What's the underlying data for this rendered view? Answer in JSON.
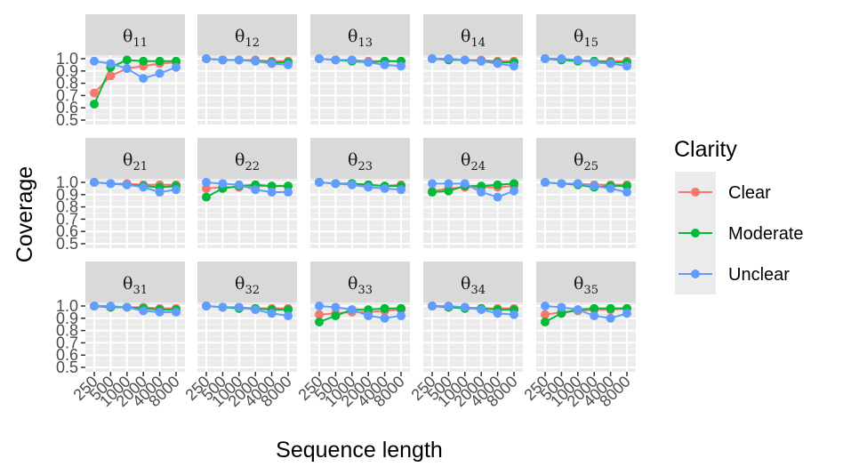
{
  "chart_data": {
    "type": "line",
    "facet_layout": "3x5 grid",
    "xlabel": "Sequence length",
    "ylabel": "Coverage",
    "x_ticks": [
      "250",
      "500",
      "1000",
      "2000",
      "4000",
      "8000"
    ],
    "y_ticks": [
      "0.5",
      "0.6",
      "0.7",
      "0.8",
      "0.9",
      "1.0"
    ],
    "ylim": [
      0.5,
      1.0
    ],
    "legend": {
      "title": "Clarity",
      "placement": "right",
      "entries": [
        {
          "name": "Clear",
          "color": "#F8766D"
        },
        {
          "name": "Moderate",
          "color": "#00BA38"
        },
        {
          "name": "Unclear",
          "color": "#619CFF"
        }
      ]
    },
    "facets": [
      {
        "base": "θ",
        "sub": "11",
        "series": {
          "Clear": [
            0.72,
            0.86,
            0.92,
            0.94,
            0.96,
            0.97
          ],
          "Moderate": [
            0.63,
            0.93,
            0.99,
            0.98,
            0.98,
            0.98
          ],
          "Unclear": [
            0.98,
            0.96,
            0.92,
            0.84,
            0.88,
            0.93
          ]
        }
      },
      {
        "base": "θ",
        "sub": "12",
        "series": {
          "Clear": [
            1.0,
            0.99,
            0.99,
            0.99,
            0.98,
            0.98
          ],
          "Moderate": [
            1.0,
            0.99,
            0.99,
            0.98,
            0.97,
            0.97
          ],
          "Unclear": [
            1.0,
            0.99,
            0.99,
            0.98,
            0.96,
            0.95
          ]
        }
      },
      {
        "base": "θ",
        "sub": "13",
        "series": {
          "Clear": [
            1.0,
            0.99,
            0.99,
            0.98,
            0.98,
            0.98
          ],
          "Moderate": [
            1.0,
            0.99,
            0.98,
            0.97,
            0.98,
            0.98
          ],
          "Unclear": [
            1.0,
            0.99,
            0.99,
            0.97,
            0.95,
            0.94
          ]
        }
      },
      {
        "base": "θ",
        "sub": "14",
        "series": {
          "Clear": [
            1.0,
            1.0,
            0.99,
            0.99,
            0.98,
            0.98
          ],
          "Moderate": [
            1.0,
            0.99,
            0.99,
            0.98,
            0.97,
            0.97
          ],
          "Unclear": [
            1.0,
            1.0,
            0.99,
            0.98,
            0.96,
            0.94
          ]
        }
      },
      {
        "base": "θ",
        "sub": "15",
        "series": {
          "Clear": [
            1.0,
            0.99,
            0.99,
            0.98,
            0.98,
            0.98
          ],
          "Moderate": [
            1.0,
            0.99,
            0.98,
            0.98,
            0.97,
            0.97
          ],
          "Unclear": [
            1.0,
            1.0,
            0.99,
            0.97,
            0.96,
            0.94
          ]
        }
      },
      {
        "base": "θ",
        "sub": "21",
        "series": {
          "Clear": [
            1.0,
            0.99,
            0.99,
            0.98,
            0.98,
            0.98
          ],
          "Moderate": [
            1.0,
            0.99,
            0.98,
            0.97,
            0.96,
            0.97
          ],
          "Unclear": [
            1.0,
            0.99,
            0.98,
            0.96,
            0.92,
            0.94
          ]
        }
      },
      {
        "base": "θ",
        "sub": "22",
        "series": {
          "Clear": [
            0.95,
            0.96,
            0.96,
            0.97,
            0.97,
            0.97
          ],
          "Moderate": [
            0.88,
            0.95,
            0.97,
            0.98,
            0.97,
            0.97
          ],
          "Unclear": [
            1.0,
            0.99,
            0.98,
            0.94,
            0.92,
            0.92
          ]
        }
      },
      {
        "base": "θ",
        "sub": "23",
        "series": {
          "Clear": [
            1.0,
            0.99,
            0.99,
            0.98,
            0.97,
            0.98
          ],
          "Moderate": [
            1.0,
            0.99,
            0.99,
            0.98,
            0.97,
            0.97
          ],
          "Unclear": [
            1.0,
            0.99,
            0.98,
            0.96,
            0.95,
            0.94
          ]
        }
      },
      {
        "base": "θ",
        "sub": "24",
        "series": {
          "Clear": [
            0.93,
            0.95,
            0.96,
            0.96,
            0.96,
            0.97
          ],
          "Moderate": [
            0.92,
            0.93,
            0.97,
            0.97,
            0.98,
            0.99
          ],
          "Unclear": [
            0.99,
            0.99,
            0.99,
            0.92,
            0.88,
            0.93
          ]
        }
      },
      {
        "base": "θ",
        "sub": "25",
        "series": {
          "Clear": [
            1.0,
            0.99,
            0.99,
            0.98,
            0.98,
            0.98
          ],
          "Moderate": [
            1.0,
            0.99,
            0.98,
            0.96,
            0.97,
            0.97
          ],
          "Unclear": [
            1.0,
            0.99,
            0.99,
            0.97,
            0.95,
            0.92
          ]
        }
      },
      {
        "base": "θ",
        "sub": "31",
        "series": {
          "Clear": [
            1.0,
            0.99,
            0.99,
            0.99,
            0.98,
            0.98
          ],
          "Moderate": [
            1.0,
            0.99,
            0.99,
            0.98,
            0.97,
            0.97
          ],
          "Unclear": [
            1.0,
            1.0,
            0.99,
            0.96,
            0.95,
            0.95
          ]
        }
      },
      {
        "base": "θ",
        "sub": "32",
        "series": {
          "Clear": [
            1.0,
            0.99,
            0.99,
            0.98,
            0.98,
            0.98
          ],
          "Moderate": [
            1.0,
            0.99,
            0.98,
            0.98,
            0.97,
            0.97
          ],
          "Unclear": [
            1.0,
            0.99,
            0.99,
            0.97,
            0.94,
            0.92
          ]
        }
      },
      {
        "base": "θ",
        "sub": "33",
        "series": {
          "Clear": [
            0.93,
            0.94,
            0.95,
            0.95,
            0.96,
            0.97
          ],
          "Moderate": [
            0.87,
            0.92,
            0.97,
            0.97,
            0.98,
            0.98
          ],
          "Unclear": [
            1.0,
            0.99,
            0.97,
            0.92,
            0.9,
            0.92
          ]
        }
      },
      {
        "base": "θ",
        "sub": "34",
        "series": {
          "Clear": [
            1.0,
            0.99,
            0.99,
            0.98,
            0.98,
            0.98
          ],
          "Moderate": [
            1.0,
            0.99,
            0.98,
            0.98,
            0.97,
            0.97
          ],
          "Unclear": [
            1.0,
            1.0,
            0.99,
            0.97,
            0.94,
            0.93
          ]
        }
      },
      {
        "base": "θ",
        "sub": "35",
        "series": {
          "Clear": [
            0.93,
            0.95,
            0.96,
            0.97,
            0.97,
            0.98
          ],
          "Moderate": [
            0.87,
            0.94,
            0.97,
            0.98,
            0.98,
            0.98
          ],
          "Unclear": [
            1.0,
            0.99,
            0.97,
            0.92,
            0.9,
            0.94
          ]
        }
      }
    ]
  }
}
